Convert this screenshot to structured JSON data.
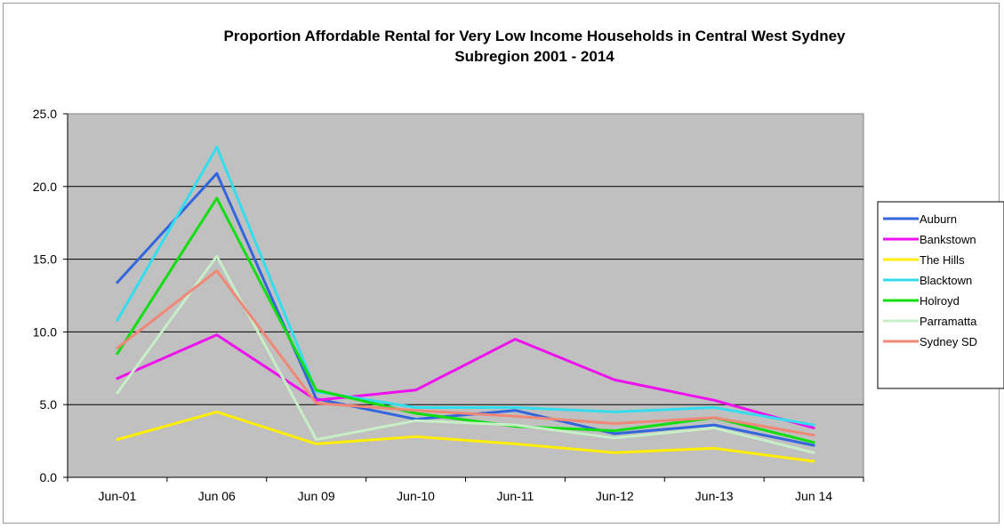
{
  "chart_data": {
    "type": "line",
    "title_line1": "Proportion Affordable Rental for Very Low Income Households in Central West Sydney",
    "title_line2": "Subregion 2001 - 2014",
    "xlabel": "",
    "ylabel": "",
    "categories": [
      "Jun-01",
      "Jun 06",
      "Jun 09",
      "Jun-10",
      "Jun-11",
      "Jun-12",
      "Jun-13",
      "Jun 14"
    ],
    "y_ticks": [
      "0.0",
      "5.0",
      "10.0",
      "15.0",
      "20.0",
      "25.0"
    ],
    "ylim": [
      0,
      25
    ],
    "grid": "horizontal",
    "plot_background": "#c0c0c0",
    "legend_position": "right",
    "series": [
      {
        "name": "Auburn",
        "color": "#3366dd",
        "values": [
          13.4,
          20.9,
          5.4,
          4.0,
          4.6,
          3.0,
          3.6,
          2.2
        ]
      },
      {
        "name": "Bankstown",
        "color": "#ee11ee",
        "values": [
          6.8,
          9.8,
          5.3,
          6.0,
          9.5,
          6.7,
          5.3,
          3.4
        ]
      },
      {
        "name": "The Hills",
        "color": "#ffee00",
        "values": [
          2.6,
          4.5,
          2.3,
          2.8,
          2.3,
          1.7,
          2.0,
          1.1
        ]
      },
      {
        "name": "Blacktown",
        "color": "#33ddee",
        "values": [
          10.8,
          22.7,
          5.9,
          4.8,
          4.8,
          4.5,
          4.8,
          3.6
        ]
      },
      {
        "name": "Holroyd",
        "color": "#11dd11",
        "values": [
          8.5,
          19.2,
          6.0,
          4.4,
          3.5,
          3.2,
          4.1,
          2.4
        ]
      },
      {
        "name": "Parramatta",
        "color": "#c8eec8",
        "values": [
          5.8,
          15.2,
          2.6,
          3.9,
          3.6,
          2.7,
          3.4,
          1.7
        ]
      },
      {
        "name": "Sydney SD",
        "color": "#f08878",
        "values": [
          8.9,
          14.2,
          5.1,
          4.6,
          4.2,
          3.7,
          4.1,
          2.9
        ]
      }
    ]
  }
}
